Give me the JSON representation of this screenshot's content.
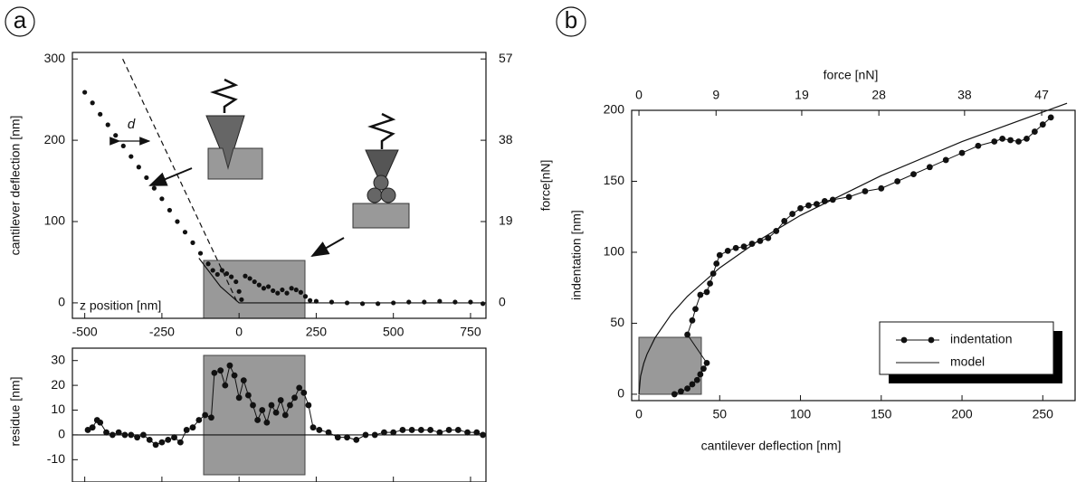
{
  "chart_data": [
    {
      "type": "line",
      "panel_label": "a",
      "ylabel": "cantilever deflection [nm]",
      "y2label": "force[nN]",
      "xlabel": "z position [nm]",
      "xlim": [
        -540,
        800
      ],
      "ylim": [
        -19,
        308
      ],
      "y2lim": [
        -3.61,
        58.52
      ],
      "xticks": [
        -500,
        -250,
        0,
        250,
        500,
        750
      ],
      "yticks": [
        0,
        100,
        200,
        300
      ],
      "y2ticks": [
        0,
        19,
        38,
        57
      ],
      "annotations": [
        "d"
      ],
      "series": [
        {
          "style": "dots",
          "color": "#111",
          "x": [
            -500,
            -475,
            -450,
            -425,
            -400,
            -375,
            -350,
            -325,
            -300,
            -275,
            -250,
            -225,
            -200,
            -175,
            -150,
            -125,
            -100,
            -85,
            -70,
            -55,
            -40,
            -25,
            -10,
            0,
            8,
            20,
            35,
            50,
            65,
            80,
            95,
            110,
            125,
            140,
            155,
            170,
            185,
            200,
            215,
            230,
            250,
            300,
            350,
            400,
            450,
            500,
            550,
            600,
            650,
            700,
            750,
            790
          ],
          "values": [
            259,
            246,
            232,
            219,
            206,
            193,
            180,
            167,
            154,
            141,
            128,
            114,
            100,
            87,
            74,
            61,
            48,
            40,
            35,
            40,
            36,
            32,
            26,
            14,
            4,
            33,
            30,
            26,
            22,
            18,
            20,
            15,
            12,
            16,
            12,
            18,
            16,
            13,
            8,
            3,
            2,
            1,
            0,
            -1,
            -1,
            0,
            1,
            1,
            2,
            1,
            1,
            -1
          ]
        },
        {
          "style": "dashed",
          "color": "#111",
          "x": [
            -377,
            -5
          ],
          "values": [
            300,
            0
          ]
        },
        {
          "style": "solid",
          "color": "#111",
          "x": [
            -130,
            -60,
            0,
            800
          ],
          "values": [
            55,
            20,
            0,
            0
          ]
        }
      ]
    },
    {
      "type": "line",
      "ylabel": "residue [nm]",
      "xlim": [
        -540,
        800
      ],
      "ylim": [
        -19,
        35
      ],
      "xticks": [
        -500,
        -250,
        0,
        250,
        500,
        750
      ],
      "xtick_labels": false,
      "yticks": [
        -10,
        0,
        10,
        20,
        30
      ],
      "zero_line": true,
      "series": [
        {
          "style": "dots-line",
          "color": "#111",
          "x": [
            -490,
            -475,
            -460,
            -450,
            -430,
            -410,
            -390,
            -370,
            -350,
            -330,
            -310,
            -290,
            -270,
            -250,
            -230,
            -210,
            -190,
            -170,
            -150,
            -130,
            -110,
            -90,
            -80,
            -60,
            -45,
            -30,
            -15,
            0,
            15,
            30,
            45,
            60,
            75,
            90,
            105,
            120,
            135,
            150,
            165,
            180,
            195,
            210,
            225,
            240,
            260,
            290,
            320,
            350,
            380,
            410,
            440,
            470,
            500,
            530,
            560,
            590,
            620,
            650,
            680,
            710,
            740,
            770,
            790
          ],
          "values": [
            2,
            3,
            6,
            5,
            1,
            0,
            1,
            0,
            0,
            -1,
            0,
            -2,
            -4,
            -3,
            -2,
            -1,
            -3,
            2,
            3,
            6,
            8,
            7,
            25,
            26,
            20,
            28,
            24,
            15,
            22,
            16,
            12,
            6,
            10,
            5,
            12,
            9,
            14,
            8,
            12,
            15,
            19,
            17,
            12,
            3,
            2,
            1,
            -1,
            -1,
            -2,
            0,
            0,
            1,
            1,
            2,
            2,
            2,
            2,
            1,
            2,
            2,
            1,
            1,
            0
          ]
        }
      ]
    },
    {
      "type": "line",
      "panel_label": "b",
      "xlabel": "cantilever deflection [nm]",
      "ylabel": "indentation [nm]",
      "x2label": "force [nN]",
      "xlim": [
        -4.5,
        270
      ],
      "ylim": [
        -4.5,
        200
      ],
      "x2lim": [
        -0.85,
        50.9
      ],
      "xticks": [
        0,
        50,
        100,
        150,
        200,
        250
      ],
      "yticks": [
        0,
        50,
        100,
        150,
        200
      ],
      "x2ticks": [
        0,
        9,
        19,
        28,
        38,
        47
      ],
      "legend": "lower right",
      "series": [
        {
          "name": "indentation",
          "style": "dots-line",
          "color": "#111",
          "x": [
            22,
            26,
            30,
            33,
            36,
            38,
            40,
            42,
            30,
            33,
            35,
            38,
            42,
            44,
            46,
            48,
            50,
            55,
            60,
            65,
            70,
            75,
            80,
            85,
            90,
            95,
            100,
            105,
            110,
            115,
            120,
            130,
            140,
            150,
            160,
            170,
            180,
            190,
            200,
            210,
            220,
            225,
            230,
            235,
            240,
            245,
            250,
            255
          ],
          "values": [
            0,
            2,
            4,
            7,
            10,
            14,
            18,
            22,
            42,
            52,
            60,
            70,
            72,
            78,
            85,
            92,
            98,
            101,
            103,
            104,
            106,
            108,
            110,
            115,
            122,
            127,
            131,
            133,
            134,
            136,
            137,
            139,
            143,
            145,
            150,
            155,
            160,
            165,
            170,
            175,
            178,
            180,
            179,
            178,
            180,
            185,
            190,
            195
          ]
        },
        {
          "name": "model",
          "style": "solid",
          "color": "#111",
          "x": [
            0,
            1,
            3,
            5,
            10,
            20,
            30,
            50,
            75,
            100,
            150,
            200,
            265
          ],
          "values": [
            0,
            12.6,
            21.8,
            28.2,
            39.8,
            56.3,
            69,
            89,
            109,
            126,
            154,
            178,
            205
          ]
        }
      ]
    }
  ]
}
